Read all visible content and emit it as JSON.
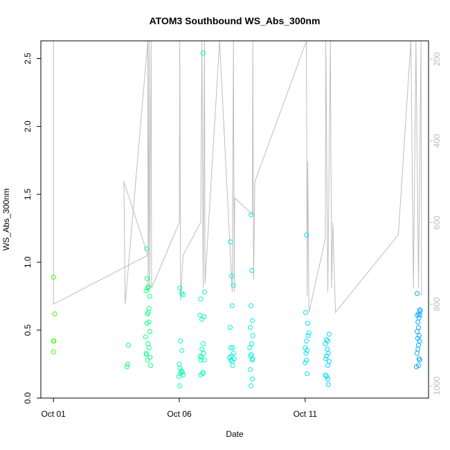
{
  "chart_data": {
    "type": "scatter",
    "title": "ATOM3 Southbound WS_Abs_300nm",
    "xlabel": "Date",
    "ylabel": "WS_Abs_300nm",
    "x_unit": "days (Oct 2017), 1 = Oct 01",
    "xlim": [
      0.5,
      15.9
    ],
    "ylim": [
      0,
      2.63
    ],
    "x_ticks": [
      {
        "value": 1,
        "label": "Oct 01"
      },
      {
        "value": 6,
        "label": "Oct 06"
      },
      {
        "value": 11,
        "label": "Oct 11"
      }
    ],
    "y_ticks": [
      "0.0",
      "0.5",
      "1.0",
      "1.5",
      "2.0",
      "2.5"
    ],
    "right_axis": {
      "label": "",
      "color": "#bdbdbd",
      "reversed": true,
      "range": [
        155,
        1030
      ],
      "ticks": [
        "200",
        "400",
        "600",
        "800",
        "1000"
      ]
    },
    "grid": false,
    "point_color_gradient": [
      "#33ff00",
      "#00ffaa",
      "#00e5ff",
      "#00a8ff"
    ],
    "points": [
      {
        "x": 1.0,
        "y": 0.89
      },
      {
        "x": 1.05,
        "y": 0.62
      },
      {
        "x": 1.0,
        "y": 0.42
      },
      {
        "x": 1.02,
        "y": 0.42
      },
      {
        "x": 1.0,
        "y": 0.34
      },
      {
        "x": 3.98,
        "y": 0.39
      },
      {
        "x": 3.95,
        "y": 0.25
      },
      {
        "x": 3.92,
        "y": 0.23
      },
      {
        "x": 4.7,
        "y": 1.1
      },
      {
        "x": 4.72,
        "y": 0.88
      },
      {
        "x": 4.78,
        "y": 0.82
      },
      {
        "x": 4.74,
        "y": 0.81
      },
      {
        "x": 4.68,
        "y": 0.79
      },
      {
        "x": 4.82,
        "y": 0.75
      },
      {
        "x": 4.8,
        "y": 0.66
      },
      {
        "x": 4.77,
        "y": 0.63
      },
      {
        "x": 4.73,
        "y": 0.62
      },
      {
        "x": 4.79,
        "y": 0.56
      },
      {
        "x": 4.71,
        "y": 0.55
      },
      {
        "x": 4.83,
        "y": 0.49
      },
      {
        "x": 4.66,
        "y": 0.45
      },
      {
        "x": 4.76,
        "y": 0.4
      },
      {
        "x": 4.8,
        "y": 0.37
      },
      {
        "x": 4.68,
        "y": 0.33
      },
      {
        "x": 4.7,
        "y": 0.32
      },
      {
        "x": 4.84,
        "y": 0.3
      },
      {
        "x": 4.74,
        "y": 0.28
      },
      {
        "x": 4.86,
        "y": 0.24
      },
      {
        "x": 6.02,
        "y": 0.81
      },
      {
        "x": 6.1,
        "y": 0.77
      },
      {
        "x": 6.15,
        "y": 0.76
      },
      {
        "x": 6.05,
        "y": 0.42
      },
      {
        "x": 6.1,
        "y": 0.35
      },
      {
        "x": 6.0,
        "y": 0.25
      },
      {
        "x": 6.03,
        "y": 0.22
      },
      {
        "x": 6.08,
        "y": 0.2
      },
      {
        "x": 6.12,
        "y": 0.19
      },
      {
        "x": 6.05,
        "y": 0.18
      },
      {
        "x": 6.15,
        "y": 0.17
      },
      {
        "x": 5.98,
        "y": 0.16
      },
      {
        "x": 6.02,
        "y": 0.09
      },
      {
        "x": 6.95,
        "y": 2.54
      },
      {
        "x": 7.0,
        "y": 0.78
      },
      {
        "x": 6.85,
        "y": 0.73
      },
      {
        "x": 6.82,
        "y": 0.61
      },
      {
        "x": 6.98,
        "y": 0.6
      },
      {
        "x": 6.9,
        "y": 0.58
      },
      {
        "x": 6.95,
        "y": 0.4
      },
      {
        "x": 6.9,
        "y": 0.36
      },
      {
        "x": 6.97,
        "y": 0.33
      },
      {
        "x": 6.83,
        "y": 0.31
      },
      {
        "x": 6.88,
        "y": 0.3
      },
      {
        "x": 7.0,
        "y": 0.28
      },
      {
        "x": 6.85,
        "y": 0.28
      },
      {
        "x": 6.95,
        "y": 0.19
      },
      {
        "x": 6.85,
        "y": 0.17
      },
      {
        "x": 6.92,
        "y": 0.18
      },
      {
        "x": 8.03,
        "y": 1.15
      },
      {
        "x": 8.08,
        "y": 0.9
      },
      {
        "x": 8.15,
        "y": 0.83
      },
      {
        "x": 8.1,
        "y": 0.68
      },
      {
        "x": 8.02,
        "y": 0.52
      },
      {
        "x": 8.05,
        "y": 0.37
      },
      {
        "x": 8.12,
        "y": 0.37
      },
      {
        "x": 8.15,
        "y": 0.33
      },
      {
        "x": 8.08,
        "y": 0.31
      },
      {
        "x": 8.0,
        "y": 0.3
      },
      {
        "x": 8.18,
        "y": 0.29
      },
      {
        "x": 8.05,
        "y": 0.28
      },
      {
        "x": 8.1,
        "y": 0.27
      },
      {
        "x": 8.12,
        "y": 0.24
      },
      {
        "x": 8.85,
        "y": 1.35
      },
      {
        "x": 8.88,
        "y": 0.94
      },
      {
        "x": 8.85,
        "y": 0.68
      },
      {
        "x": 8.9,
        "y": 0.57
      },
      {
        "x": 8.82,
        "y": 0.52
      },
      {
        "x": 8.92,
        "y": 0.46
      },
      {
        "x": 8.88,
        "y": 0.4
      },
      {
        "x": 8.8,
        "y": 0.37
      },
      {
        "x": 8.86,
        "y": 0.32
      },
      {
        "x": 8.83,
        "y": 0.31
      },
      {
        "x": 8.91,
        "y": 0.29
      },
      {
        "x": 8.9,
        "y": 0.28
      },
      {
        "x": 8.82,
        "y": 0.21
      },
      {
        "x": 8.9,
        "y": 0.14
      },
      {
        "x": 8.85,
        "y": 0.09
      },
      {
        "x": 11.05,
        "y": 1.2
      },
      {
        "x": 11.02,
        "y": 0.63
      },
      {
        "x": 11.1,
        "y": 0.55
      },
      {
        "x": 11.15,
        "y": 0.48
      },
      {
        "x": 11.12,
        "y": 0.46
      },
      {
        "x": 11.05,
        "y": 0.42
      },
      {
        "x": 11.0,
        "y": 0.37
      },
      {
        "x": 11.08,
        "y": 0.35
      },
      {
        "x": 11.03,
        "y": 0.33
      },
      {
        "x": 11.05,
        "y": 0.28
      },
      {
        "x": 11.0,
        "y": 0.26
      },
      {
        "x": 11.08,
        "y": 0.18
      },
      {
        "x": 11.85,
        "y": 0.43
      },
      {
        "x": 11.95,
        "y": 0.47
      },
      {
        "x": 11.9,
        "y": 0.42
      },
      {
        "x": 11.8,
        "y": 0.4
      },
      {
        "x": 11.88,
        "y": 0.36
      },
      {
        "x": 11.92,
        "y": 0.33
      },
      {
        "x": 11.85,
        "y": 0.31
      },
      {
        "x": 11.82,
        "y": 0.29
      },
      {
        "x": 11.95,
        "y": 0.27
      },
      {
        "x": 11.9,
        "y": 0.24
      },
      {
        "x": 11.8,
        "y": 0.17
      },
      {
        "x": 11.85,
        "y": 0.16
      },
      {
        "x": 11.9,
        "y": 0.14
      },
      {
        "x": 11.92,
        "y": 0.1
      },
      {
        "x": 15.45,
        "y": 0.77
      },
      {
        "x": 15.55,
        "y": 0.65
      },
      {
        "x": 15.57,
        "y": 0.64
      },
      {
        "x": 15.5,
        "y": 0.62
      },
      {
        "x": 15.45,
        "y": 0.61
      },
      {
        "x": 15.55,
        "y": 0.61
      },
      {
        "x": 15.52,
        "y": 0.59
      },
      {
        "x": 15.48,
        "y": 0.56
      },
      {
        "x": 15.5,
        "y": 0.52
      },
      {
        "x": 15.45,
        "y": 0.49
      },
      {
        "x": 15.53,
        "y": 0.46
      },
      {
        "x": 15.47,
        "y": 0.44
      },
      {
        "x": 15.55,
        "y": 0.42
      },
      {
        "x": 15.5,
        "y": 0.39
      },
      {
        "x": 15.48,
        "y": 0.36
      },
      {
        "x": 15.44,
        "y": 0.33
      },
      {
        "x": 15.52,
        "y": 0.29
      },
      {
        "x": 15.55,
        "y": 0.28
      },
      {
        "x": 15.5,
        "y": 0.24
      },
      {
        "x": 15.42,
        "y": 0.23
      }
    ],
    "altitude_trace": [
      {
        "x": 1.0,
        "alt": 155
      },
      {
        "x": 1.0,
        "alt": 800
      },
      {
        "x": 4.75,
        "alt": 680
      },
      {
        "x": 3.8,
        "alt": 500
      },
      {
        "x": 3.85,
        "alt": 800
      },
      {
        "x": 4.75,
        "alt": 155
      },
      {
        "x": 4.76,
        "alt": 770
      },
      {
        "x": 4.8,
        "alt": 155
      },
      {
        "x": 4.82,
        "alt": 770
      },
      {
        "x": 4.88,
        "alt": 155
      },
      {
        "x": 4.9,
        "alt": 760
      },
      {
        "x": 6.0,
        "alt": 600
      },
      {
        "x": 6.02,
        "alt": 155
      },
      {
        "x": 6.05,
        "alt": 790
      },
      {
        "x": 6.15,
        "alt": 680
      },
      {
        "x": 6.85,
        "alt": 600
      },
      {
        "x": 6.9,
        "alt": 155
      },
      {
        "x": 6.95,
        "alt": 760
      },
      {
        "x": 7.0,
        "alt": 155
      },
      {
        "x": 7.02,
        "alt": 750
      },
      {
        "x": 7.6,
        "alt": 155
      },
      {
        "x": 8.1,
        "alt": 770
      },
      {
        "x": 8.15,
        "alt": 155
      },
      {
        "x": 8.18,
        "alt": 770
      },
      {
        "x": 8.2,
        "alt": 540
      },
      {
        "x": 8.9,
        "alt": 580
      },
      {
        "x": 8.92,
        "alt": 155
      },
      {
        "x": 8.95,
        "alt": 740
      },
      {
        "x": 9.0,
        "alt": 500
      },
      {
        "x": 11.05,
        "alt": 155
      },
      {
        "x": 11.08,
        "alt": 780
      },
      {
        "x": 11.1,
        "alt": 450
      },
      {
        "x": 11.15,
        "alt": 820
      },
      {
        "x": 11.8,
        "alt": 640
      },
      {
        "x": 11.82,
        "alt": 155
      },
      {
        "x": 11.9,
        "alt": 770
      },
      {
        "x": 12.0,
        "alt": 155
      },
      {
        "x": 12.05,
        "alt": 760
      },
      {
        "x": 12.1,
        "alt": 600
      },
      {
        "x": 12.2,
        "alt": 820
      },
      {
        "x": 14.7,
        "alt": 630
      },
      {
        "x": 15.2,
        "alt": 155
      },
      {
        "x": 15.3,
        "alt": 760
      },
      {
        "x": 15.4,
        "alt": 155
      },
      {
        "x": 15.5,
        "alt": 760
      },
      {
        "x": 15.6,
        "alt": 155
      },
      {
        "x": 15.62,
        "alt": 780
      }
    ]
  }
}
